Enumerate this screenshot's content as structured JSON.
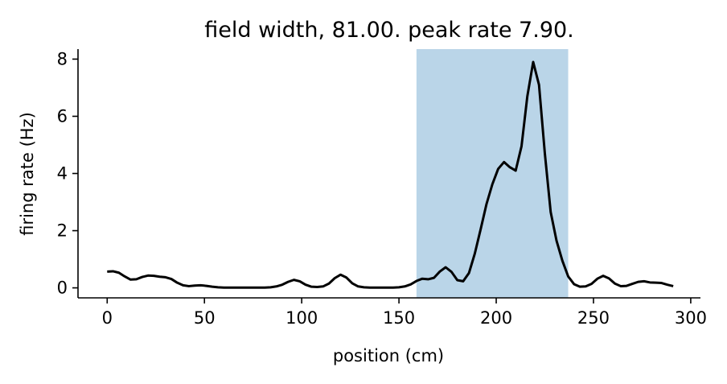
{
  "chart_data": {
    "type": "line",
    "title": "field width, 81.00. peak rate 7.90.",
    "xlabel": "position (cm)",
    "ylabel": "firing rate (Hz)",
    "xlim": [
      -15,
      305
    ],
    "ylim": [
      -0.35,
      8.35
    ],
    "xticks": [
      0,
      50,
      100,
      150,
      200,
      250,
      300
    ],
    "yticks": [
      0,
      2,
      4,
      6,
      8
    ],
    "grid": false,
    "line_color": "#000000",
    "field_color": "#bad5e8",
    "field_span": [
      159,
      237
    ],
    "series": [
      {
        "x": [
          0,
          3,
          6,
          9,
          12,
          15,
          18,
          21,
          24,
          27,
          30,
          33,
          36,
          39,
          42,
          45,
          48,
          51,
          54,
          57,
          60,
          63,
          66,
          69,
          72,
          75,
          78,
          81,
          84,
          87,
          90,
          93,
          96,
          99,
          102,
          105,
          108,
          111,
          114,
          117,
          120,
          123,
          126,
          129,
          132,
          135,
          138,
          141,
          144,
          147,
          150,
          153,
          156,
          159,
          162,
          165,
          168,
          171,
          174,
          177,
          180,
          183,
          186,
          189,
          192,
          195,
          198,
          201,
          204,
          207,
          210,
          213,
          216,
          219,
          222,
          225,
          228,
          231,
          234,
          237,
          240,
          243,
          246,
          249,
          252,
          255,
          258,
          261,
          264,
          267,
          270,
          273,
          276,
          279,
          282,
          285,
          288,
          291
        ],
        "y": [
          0.57,
          0.58,
          0.53,
          0.4,
          0.29,
          0.3,
          0.38,
          0.43,
          0.42,
          0.39,
          0.37,
          0.31,
          0.18,
          0.09,
          0.06,
          0.08,
          0.09,
          0.07,
          0.04,
          0.02,
          0.01,
          0.01,
          0.01,
          0.01,
          0.01,
          0.01,
          0.01,
          0.01,
          0.02,
          0.05,
          0.11,
          0.21,
          0.28,
          0.23,
          0.11,
          0.04,
          0.03,
          0.05,
          0.15,
          0.34,
          0.46,
          0.36,
          0.16,
          0.05,
          0.02,
          0.01,
          0.01,
          0.01,
          0.01,
          0.01,
          0.02,
          0.05,
          0.12,
          0.24,
          0.32,
          0.3,
          0.35,
          0.57,
          0.72,
          0.56,
          0.27,
          0.23,
          0.52,
          1.2,
          2.05,
          2.93,
          3.62,
          4.16,
          4.4,
          4.22,
          4.1,
          4.95,
          6.7,
          7.9,
          7.1,
          4.7,
          2.65,
          1.65,
          0.95,
          0.4,
          0.13,
          0.04,
          0.05,
          0.14,
          0.32,
          0.42,
          0.33,
          0.15,
          0.06,
          0.07,
          0.14,
          0.21,
          0.23,
          0.19,
          0.18,
          0.17,
          0.11,
          0.06
        ]
      }
    ]
  }
}
